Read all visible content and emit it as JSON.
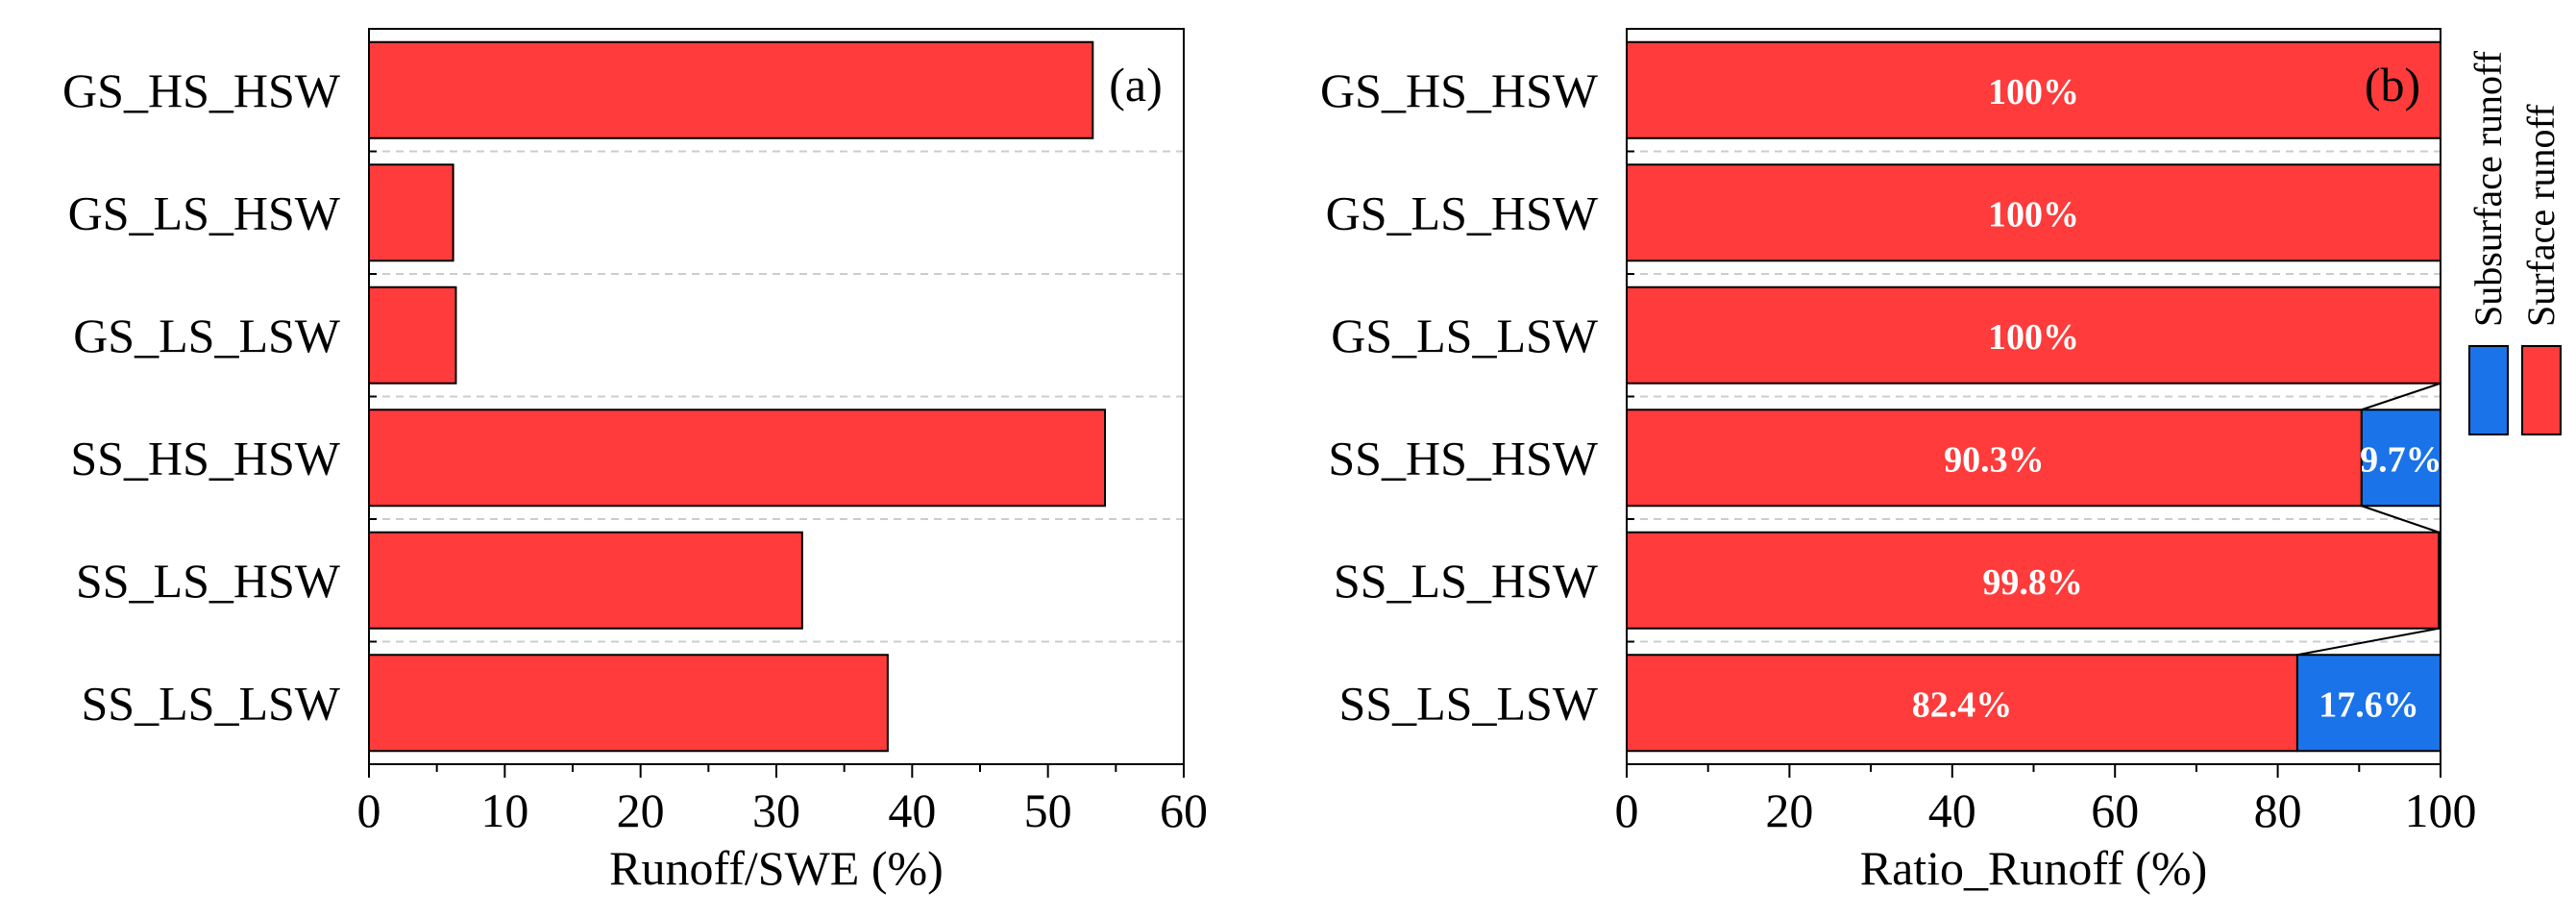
{
  "colors": {
    "surface": "#ff3b3b",
    "subsurface": "#1a73e8",
    "axis": "#000000",
    "gridline": "#cccccc"
  },
  "chart_data": [
    {
      "type": "bar",
      "orientation": "horizontal",
      "panel_tag": "(a)",
      "categories": [
        "GS_HS_HSW",
        "GS_LS_HSW",
        "GS_LS_LSW",
        "SS_HS_HSW",
        "SS_LS_HSW",
        "SS_LS_LSW"
      ],
      "values": [
        53.3,
        6.2,
        6.4,
        54.2,
        31.9,
        38.2
      ],
      "xlabel": "Runoff/SWE (%)",
      "xlim": [
        0,
        60
      ],
      "xticks": [
        "0",
        "10",
        "20",
        "30",
        "40",
        "50",
        "60"
      ],
      "grid": "horizontal dashed separators between categories"
    },
    {
      "type": "bar",
      "orientation": "horizontal",
      "stacked": true,
      "panel_tag": "(b)",
      "categories": [
        "GS_HS_HSW",
        "GS_LS_HSW",
        "GS_LS_LSW",
        "SS_HS_HSW",
        "SS_LS_HSW",
        "SS_LS_LSW"
      ],
      "series": [
        {
          "name": "Surface runoff",
          "values": [
            100,
            100,
            100,
            90.3,
            99.8,
            82.4
          ],
          "labels": [
            "100%",
            "100%",
            "100%",
            "90.3%",
            "99.8%",
            "82.4%"
          ]
        },
        {
          "name": "Subsurface runoff",
          "values": [
            0,
            0,
            0,
            9.7,
            0.2,
            17.6
          ],
          "labels": [
            "",
            "",
            "",
            "9.7%",
            "",
            "17.6%"
          ]
        }
      ],
      "xlabel": "Ratio_Runoff (%)",
      "xlim": [
        0,
        100
      ],
      "xticks": [
        "0",
        "20",
        "40",
        "60",
        "80",
        "100"
      ],
      "legend": "right, vertical",
      "grid": "horizontal dashed separators between categories"
    }
  ]
}
